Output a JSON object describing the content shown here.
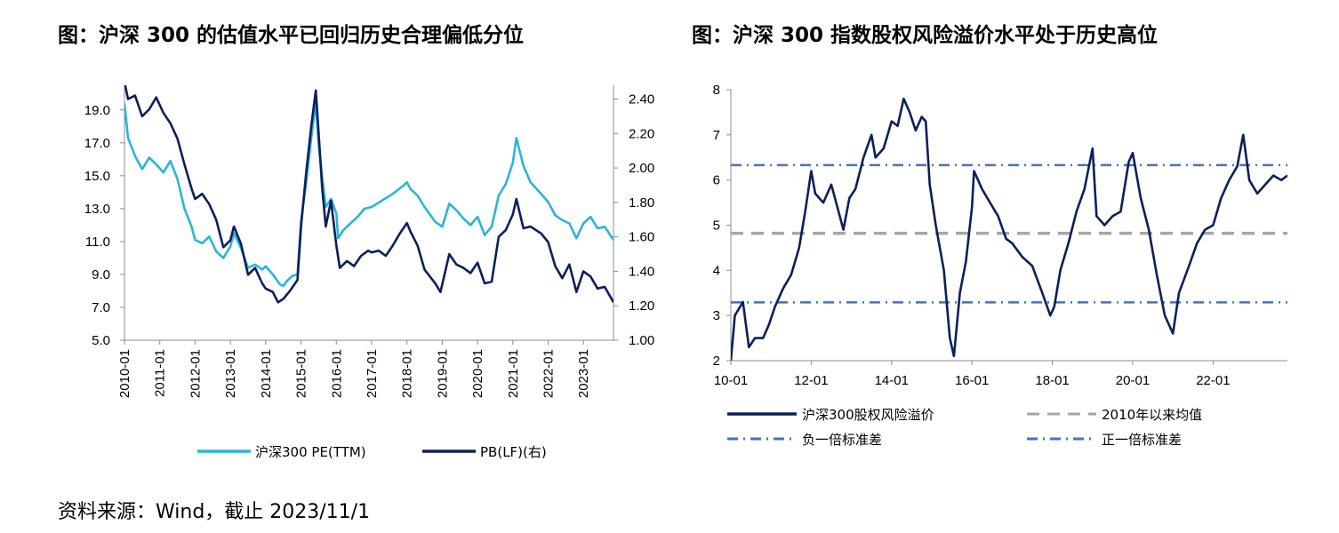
{
  "source_text": "资料来源：Wind，截止 2023/11/1",
  "chart_data": [
    {
      "id": "left",
      "type": "line",
      "title": "图：沪深 300 的估值水平已回归历史合理偏低分位",
      "x_ticks": [
        "2010-01",
        "2011-01",
        "2012-01",
        "2013-01",
        "2014-01",
        "2015-01",
        "2016-01",
        "2017-01",
        "2018-01",
        "2019-01",
        "2020-01",
        "2021-01",
        "2022-01",
        "2023-01"
      ],
      "x_range": [
        2010.0,
        2023.85
      ],
      "y_left": {
        "min": 5.0,
        "max": 20.5,
        "ticks": [
          "5.0",
          "7.0",
          "9.0",
          "11.0",
          "13.0",
          "15.0",
          "17.0",
          "19.0"
        ]
      },
      "y_right": {
        "min": 1.0,
        "max": 2.48,
        "ticks": [
          "1.00",
          "1.20",
          "1.40",
          "1.60",
          "1.80",
          "2.00",
          "2.20",
          "2.40"
        ]
      },
      "series": [
        {
          "name": "沪深300 PE(TTM)",
          "axis": "left",
          "color": "#2bb5d8",
          "points": [
            [
              2010.0,
              19.4
            ],
            [
              2010.1,
              17.3
            ],
            [
              2010.3,
              16.2
            ],
            [
              2010.5,
              15.4
            ],
            [
              2010.7,
              16.1
            ],
            [
              2010.9,
              15.7
            ],
            [
              2011.1,
              15.2
            ],
            [
              2011.3,
              15.9
            ],
            [
              2011.5,
              14.8
            ],
            [
              2011.7,
              13.0
            ],
            [
              2011.9,
              11.9
            ],
            [
              2012.0,
              11.1
            ],
            [
              2012.2,
              10.9
            ],
            [
              2012.4,
              11.3
            ],
            [
              2012.6,
              10.4
            ],
            [
              2012.8,
              10.0
            ],
            [
              2013.0,
              10.7
            ],
            [
              2013.1,
              11.5
            ],
            [
              2013.3,
              10.6
            ],
            [
              2013.5,
              9.4
            ],
            [
              2013.7,
              9.6
            ],
            [
              2013.9,
              9.3
            ],
            [
              2014.0,
              9.5
            ],
            [
              2014.2,
              9.0
            ],
            [
              2014.4,
              8.4
            ],
            [
              2014.5,
              8.3
            ],
            [
              2014.6,
              8.6
            ],
            [
              2014.75,
              8.9
            ],
            [
              2014.9,
              9.0
            ],
            [
              2015.0,
              12.3
            ],
            [
              2015.15,
              14.6
            ],
            [
              2015.3,
              17.5
            ],
            [
              2015.42,
              19.4
            ],
            [
              2015.5,
              16.9
            ],
            [
              2015.6,
              14.9
            ],
            [
              2015.7,
              13.1
            ],
            [
              2015.85,
              13.6
            ],
            [
              2016.0,
              12.7
            ],
            [
              2016.05,
              11.2
            ],
            [
              2016.2,
              11.7
            ],
            [
              2016.4,
              12.1
            ],
            [
              2016.6,
              12.5
            ],
            [
              2016.8,
              13.0
            ],
            [
              2017.0,
              13.1
            ],
            [
              2017.3,
              13.5
            ],
            [
              2017.6,
              13.9
            ],
            [
              2017.9,
              14.4
            ],
            [
              2018.0,
              14.6
            ],
            [
              2018.1,
              14.2
            ],
            [
              2018.3,
              13.8
            ],
            [
              2018.5,
              13.1
            ],
            [
              2018.8,
              12.2
            ],
            [
              2019.0,
              11.9
            ],
            [
              2019.2,
              13.3
            ],
            [
              2019.4,
              12.9
            ],
            [
              2019.6,
              12.4
            ],
            [
              2019.8,
              12.0
            ],
            [
              2020.0,
              12.5
            ],
            [
              2020.2,
              11.4
            ],
            [
              2020.4,
              11.9
            ],
            [
              2020.6,
              13.8
            ],
            [
              2020.8,
              14.5
            ],
            [
              2021.0,
              15.8
            ],
            [
              2021.1,
              17.3
            ],
            [
              2021.3,
              15.6
            ],
            [
              2021.5,
              14.6
            ],
            [
              2021.8,
              13.9
            ],
            [
              2022.0,
              13.4
            ],
            [
              2022.2,
              12.6
            ],
            [
              2022.4,
              12.3
            ],
            [
              2022.6,
              12.1
            ],
            [
              2022.8,
              11.2
            ],
            [
              2023.0,
              12.1
            ],
            [
              2023.2,
              12.5
            ],
            [
              2023.4,
              11.8
            ],
            [
              2023.6,
              11.9
            ],
            [
              2023.85,
              11.1
            ]
          ]
        },
        {
          "name": "PB(LF)(右)",
          "axis": "right",
          "color": "#0b1f5c",
          "points": [
            [
              2010.0,
              2.5
            ],
            [
              2010.1,
              2.4
            ],
            [
              2010.3,
              2.42
            ],
            [
              2010.5,
              2.3
            ],
            [
              2010.7,
              2.34
            ],
            [
              2010.9,
              2.41
            ],
            [
              2011.1,
              2.32
            ],
            [
              2011.3,
              2.26
            ],
            [
              2011.5,
              2.17
            ],
            [
              2011.7,
              2.02
            ],
            [
              2011.9,
              1.88
            ],
            [
              2012.0,
              1.82
            ],
            [
              2012.2,
              1.85
            ],
            [
              2012.4,
              1.79
            ],
            [
              2012.6,
              1.7
            ],
            [
              2012.8,
              1.54
            ],
            [
              2013.0,
              1.58
            ],
            [
              2013.1,
              1.66
            ],
            [
              2013.3,
              1.56
            ],
            [
              2013.5,
              1.38
            ],
            [
              2013.7,
              1.42
            ],
            [
              2013.9,
              1.33
            ],
            [
              2014.0,
              1.3
            ],
            [
              2014.2,
              1.28
            ],
            [
              2014.35,
              1.22
            ],
            [
              2014.5,
              1.24
            ],
            [
              2014.7,
              1.29
            ],
            [
              2014.9,
              1.35
            ],
            [
              2015.0,
              1.66
            ],
            [
              2015.15,
              1.98
            ],
            [
              2015.3,
              2.26
            ],
            [
              2015.42,
              2.45
            ],
            [
              2015.5,
              2.2
            ],
            [
              2015.6,
              1.88
            ],
            [
              2015.7,
              1.66
            ],
            [
              2015.85,
              1.81
            ],
            [
              2016.0,
              1.55
            ],
            [
              2016.1,
              1.42
            ],
            [
              2016.3,
              1.46
            ],
            [
              2016.5,
              1.43
            ],
            [
              2016.7,
              1.49
            ],
            [
              2016.9,
              1.52
            ],
            [
              2017.0,
              1.51
            ],
            [
              2017.2,
              1.52
            ],
            [
              2017.4,
              1.49
            ],
            [
              2017.6,
              1.55
            ],
            [
              2017.8,
              1.62
            ],
            [
              2018.0,
              1.68
            ],
            [
              2018.1,
              1.63
            ],
            [
              2018.3,
              1.55
            ],
            [
              2018.5,
              1.41
            ],
            [
              2018.8,
              1.33
            ],
            [
              2018.95,
              1.28
            ],
            [
              2019.2,
              1.5
            ],
            [
              2019.4,
              1.44
            ],
            [
              2019.6,
              1.42
            ],
            [
              2019.8,
              1.39
            ],
            [
              2020.0,
              1.45
            ],
            [
              2020.2,
              1.33
            ],
            [
              2020.4,
              1.34
            ],
            [
              2020.6,
              1.6
            ],
            [
              2020.8,
              1.64
            ],
            [
              2021.0,
              1.73
            ],
            [
              2021.1,
              1.82
            ],
            [
              2021.3,
              1.65
            ],
            [
              2021.5,
              1.66
            ],
            [
              2021.8,
              1.62
            ],
            [
              2022.0,
              1.57
            ],
            [
              2022.2,
              1.43
            ],
            [
              2022.4,
              1.36
            ],
            [
              2022.6,
              1.44
            ],
            [
              2022.8,
              1.28
            ],
            [
              2023.0,
              1.4
            ],
            [
              2023.2,
              1.37
            ],
            [
              2023.4,
              1.3
            ],
            [
              2023.6,
              1.31
            ],
            [
              2023.85,
              1.22
            ]
          ]
        }
      ],
      "legend": [
        "沪深300 PE(TTM)",
        "PB(LF)(右)"
      ]
    },
    {
      "id": "right",
      "type": "line",
      "title": "图：沪深 300 指数股权风险溢价水平处于历史高位",
      "x_ticks": [
        "10-01",
        "12-01",
        "14-01",
        "16-01",
        "18-01",
        "20-01",
        "22-01"
      ],
      "x_range": [
        2010.0,
        2023.85
      ],
      "y": {
        "min": 2,
        "max": 8,
        "ticks": [
          "2",
          "3",
          "4",
          "5",
          "6",
          "7",
          "8"
        ]
      },
      "series": [
        {
          "name": "沪深300股权风险溢价",
          "style": "solid",
          "color": "#0b1f5c",
          "points": [
            [
              2010.0,
              2.0
            ],
            [
              2010.1,
              3.0
            ],
            [
              2010.3,
              3.3
            ],
            [
              2010.45,
              2.3
            ],
            [
              2010.6,
              2.5
            ],
            [
              2010.8,
              2.5
            ],
            [
              2010.95,
              2.8
            ],
            [
              2011.1,
              3.2
            ],
            [
              2011.3,
              3.6
            ],
            [
              2011.5,
              3.9
            ],
            [
              2011.7,
              4.5
            ],
            [
              2011.85,
              5.3
            ],
            [
              2012.0,
              6.2
            ],
            [
              2012.1,
              5.7
            ],
            [
              2012.3,
              5.5
            ],
            [
              2012.5,
              5.9
            ],
            [
              2012.65,
              5.4
            ],
            [
              2012.8,
              4.9
            ],
            [
              2012.95,
              5.6
            ],
            [
              2013.1,
              5.8
            ],
            [
              2013.3,
              6.5
            ],
            [
              2013.5,
              7.0
            ],
            [
              2013.6,
              6.5
            ],
            [
              2013.8,
              6.7
            ],
            [
              2014.0,
              7.3
            ],
            [
              2014.15,
              7.2
            ],
            [
              2014.3,
              7.8
            ],
            [
              2014.45,
              7.5
            ],
            [
              2014.6,
              7.1
            ],
            [
              2014.75,
              7.4
            ],
            [
              2014.85,
              7.3
            ],
            [
              2014.95,
              5.9
            ],
            [
              2015.1,
              5.0
            ],
            [
              2015.3,
              4.0
            ],
            [
              2015.45,
              2.5
            ],
            [
              2015.55,
              2.1
            ],
            [
              2015.7,
              3.5
            ],
            [
              2015.85,
              4.2
            ],
            [
              2016.0,
              5.4
            ],
            [
              2016.05,
              6.2
            ],
            [
              2016.25,
              5.8
            ],
            [
              2016.45,
              5.5
            ],
            [
              2016.65,
              5.2
            ],
            [
              2016.85,
              4.7
            ],
            [
              2017.0,
              4.6
            ],
            [
              2017.25,
              4.3
            ],
            [
              2017.5,
              4.1
            ],
            [
              2017.75,
              3.5
            ],
            [
              2017.95,
              3.0
            ],
            [
              2018.05,
              3.2
            ],
            [
              2018.2,
              4.0
            ],
            [
              2018.4,
              4.6
            ],
            [
              2018.6,
              5.3
            ],
            [
              2018.8,
              5.8
            ],
            [
              2019.0,
              6.7
            ],
            [
              2019.1,
              5.2
            ],
            [
              2019.3,
              5.0
            ],
            [
              2019.5,
              5.2
            ],
            [
              2019.7,
              5.3
            ],
            [
              2019.9,
              6.4
            ],
            [
              2020.0,
              6.6
            ],
            [
              2020.2,
              5.6
            ],
            [
              2020.4,
              4.9
            ],
            [
              2020.6,
              3.9
            ],
            [
              2020.8,
              3.0
            ],
            [
              2021.0,
              2.6
            ],
            [
              2021.15,
              3.5
            ],
            [
              2021.4,
              4.1
            ],
            [
              2021.6,
              4.6
            ],
            [
              2021.8,
              4.9
            ],
            [
              2022.0,
              5.0
            ],
            [
              2022.2,
              5.6
            ],
            [
              2022.4,
              6.0
            ],
            [
              2022.6,
              6.3
            ],
            [
              2022.75,
              7.0
            ],
            [
              2022.9,
              6.0
            ],
            [
              2023.1,
              5.7
            ],
            [
              2023.3,
              5.9
            ],
            [
              2023.5,
              6.1
            ],
            [
              2023.7,
              6.0
            ],
            [
              2023.85,
              6.1
            ]
          ]
        },
        {
          "name": "2010年以来均值",
          "style": "dashed",
          "color": "#a6a6a6",
          "value": 4.82
        },
        {
          "name": "负一倍标准差",
          "style": "dash-dot",
          "color": "#4472c4",
          "value": 3.29
        },
        {
          "name": "正一倍标准差",
          "style": "dash-dot",
          "color": "#4472c4",
          "value": 6.33
        }
      ],
      "legend": [
        "沪深300股权风险溢价",
        "2010年以来均值",
        "负一倍标准差",
        "正一倍标准差"
      ]
    }
  ]
}
